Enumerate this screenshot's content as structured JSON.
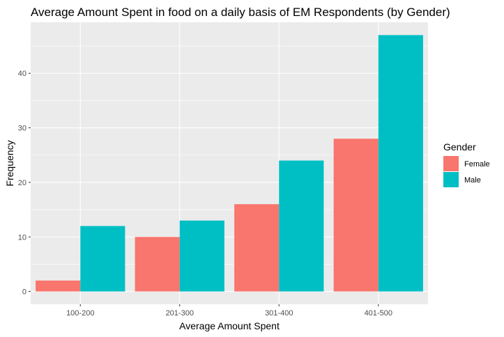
{
  "chart_data": {
    "type": "bar",
    "title": "Average Amount Spent in food on a daily basis of EM Respondents (by Gender)",
    "xlabel": "Average Amount Spent",
    "ylabel": "Frequency",
    "categories": [
      "100-200",
      "201-300",
      "301-400",
      "401-500"
    ],
    "series": [
      {
        "name": "Female",
        "color": "#F8766D",
        "values": [
          2,
          10,
          16,
          28
        ]
      },
      {
        "name": "Male",
        "color": "#00BFC4",
        "values": [
          12,
          13,
          24,
          47
        ]
      }
    ],
    "ylim": [
      -2.35,
      49.35
    ],
    "yticks": [
      0,
      10,
      20,
      30,
      40
    ],
    "legend": {
      "title": "Gender",
      "position": "right"
    },
    "grid": true,
    "panel_background": "#EBEBEB",
    "grid_color": "#FFFFFF"
  }
}
